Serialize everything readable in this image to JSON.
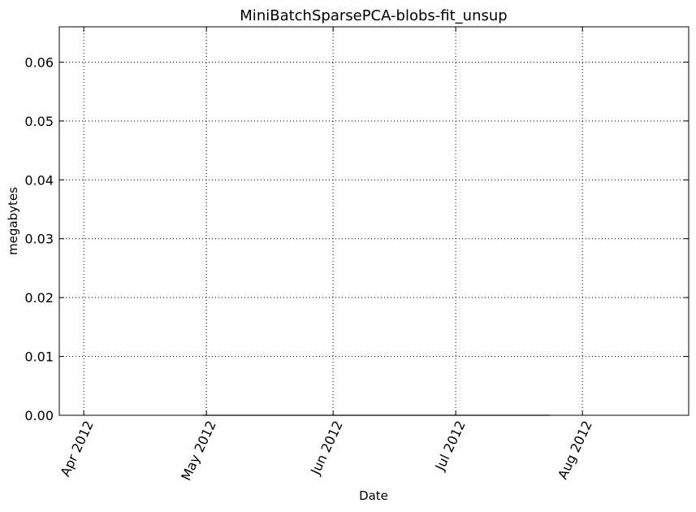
{
  "chart_data": {
    "type": "line",
    "title": "MiniBatchSparsePCA-blobs-fit_unsup",
    "xlabel": "Date",
    "ylabel": "megabytes",
    "x_type": "date",
    "xlim": [
      "2012-03-26",
      "2012-08-27"
    ],
    "ylim": [
      0,
      0.066
    ],
    "x_ticks": [
      {
        "value": "2012-04-01",
        "label": "Apr 2012"
      },
      {
        "value": "2012-05-01",
        "label": "May 2012"
      },
      {
        "value": "2012-06-01",
        "label": "Jun 2012"
      },
      {
        "value": "2012-07-01",
        "label": "Jul 2012"
      },
      {
        "value": "2012-08-01",
        "label": "Aug 2012"
      }
    ],
    "y_ticks": [
      {
        "value": 0.0,
        "label": "0.00"
      },
      {
        "value": 0.01,
        "label": "0.01"
      },
      {
        "value": 0.02,
        "label": "0.02"
      },
      {
        "value": 0.03,
        "label": "0.03"
      },
      {
        "value": 0.04,
        "label": "0.04"
      },
      {
        "value": 0.05,
        "label": "0.05"
      },
      {
        "value": 0.06,
        "label": "0.06"
      }
    ],
    "grid": true,
    "series": [
      {
        "x": [
          "2012-04-30",
          "2012-07-24"
        ],
        "y": [
          0.0,
          0.0
        ],
        "color": "#000000"
      }
    ]
  }
}
